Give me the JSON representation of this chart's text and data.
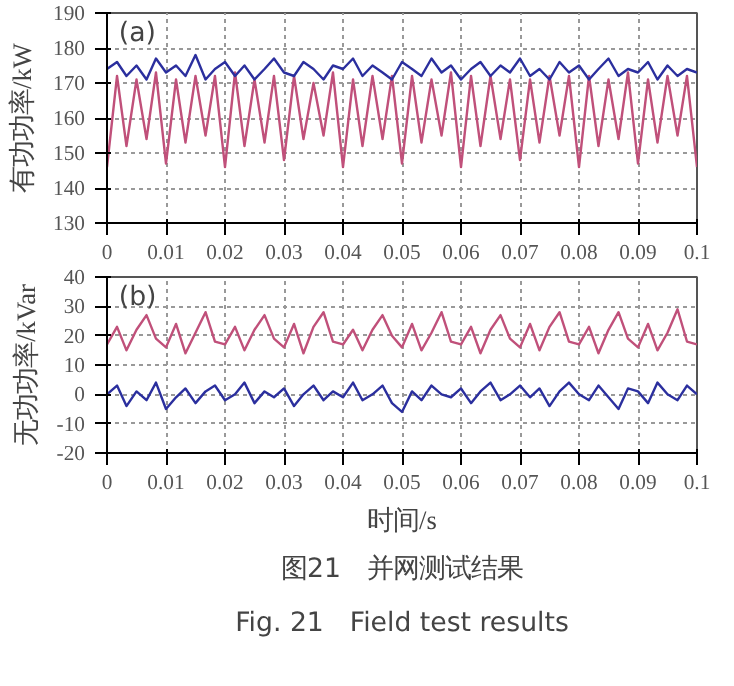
{
  "chart_data": [
    {
      "type": "line",
      "ylabel": "有功功率/kW",
      "annotations": [
        "(a)"
      ],
      "xlim": [
        0,
        0.1
      ],
      "ylim": [
        130,
        190
      ],
      "xticks": [
        0,
        0.01,
        0.02,
        0.03,
        0.04,
        0.05,
        0.06,
        0.07,
        0.08,
        0.09,
        0.1
      ],
      "yticks": [
        130,
        140,
        150,
        160,
        170,
        180,
        190
      ],
      "grid": true,
      "x": [
        0,
        0.0017,
        0.0033,
        0.005,
        0.0067,
        0.0083,
        0.01,
        0.0117,
        0.0133,
        0.015,
        0.0167,
        0.0183,
        0.02,
        0.0217,
        0.0233,
        0.025,
        0.0267,
        0.0283,
        0.03,
        0.0317,
        0.0333,
        0.035,
        0.0367,
        0.0383,
        0.04,
        0.0417,
        0.0433,
        0.045,
        0.0467,
        0.0483,
        0.05,
        0.0517,
        0.0533,
        0.055,
        0.0567,
        0.0583,
        0.06,
        0.0617,
        0.0633,
        0.065,
        0.0667,
        0.0683,
        0.07,
        0.0717,
        0.0733,
        0.075,
        0.0767,
        0.0783,
        0.08,
        0.0817,
        0.0833,
        0.085,
        0.0867,
        0.0883,
        0.09,
        0.0917,
        0.0933,
        0.095,
        0.0967,
        0.0983,
        0.1
      ],
      "series": [
        {
          "color": "#c0507a",
          "values": [
            146,
            172,
            152,
            171,
            154,
            173,
            147,
            171,
            153,
            172,
            155,
            172,
            146,
            173,
            152,
            171,
            153,
            172,
            148,
            172,
            154,
            170,
            155,
            173,
            146,
            171,
            152,
            172,
            154,
            172,
            147,
            172,
            153,
            171,
            155,
            173,
            146,
            172,
            152,
            172,
            154,
            171,
            148,
            171,
            153,
            172,
            155,
            172,
            146,
            172,
            152,
            171,
            154,
            173,
            147,
            171,
            153,
            172,
            155,
            172,
            146
          ]
        },
        {
          "color": "#2b2f9e",
          "values": [
            174,
            176,
            172,
            175,
            171,
            177,
            173,
            175,
            172,
            178,
            171,
            174,
            176,
            172,
            175,
            171,
            174,
            177,
            173,
            172,
            176,
            174,
            171,
            175,
            174,
            177,
            172,
            175,
            173,
            171,
            176,
            174,
            172,
            177,
            173,
            175,
            171,
            174,
            176,
            172,
            175,
            173,
            177,
            172,
            174,
            171,
            176,
            173,
            175,
            171,
            174,
            177,
            172,
            174,
            173,
            176,
            171,
            175,
            172,
            174,
            173
          ]
        }
      ]
    },
    {
      "type": "line",
      "xlabel": "时间/s",
      "ylabel": "无功功率/kVar",
      "annotations": [
        "(b)",
        "图21　并网测试结果",
        "Fig. 21　Field test results"
      ],
      "xlim": [
        0,
        0.1
      ],
      "ylim": [
        -20,
        40
      ],
      "xticks": [
        0,
        0.01,
        0.02,
        0.03,
        0.04,
        0.05,
        0.06,
        0.07,
        0.08,
        0.09,
        0.1
      ],
      "yticks": [
        -20,
        -10,
        0,
        10,
        20,
        30,
        40
      ],
      "grid": true,
      "x": [
        0,
        0.0017,
        0.0033,
        0.005,
        0.0067,
        0.0083,
        0.01,
        0.0117,
        0.0133,
        0.015,
        0.0167,
        0.0183,
        0.02,
        0.0217,
        0.0233,
        0.025,
        0.0267,
        0.0283,
        0.03,
        0.0317,
        0.0333,
        0.035,
        0.0367,
        0.0383,
        0.04,
        0.0417,
        0.0433,
        0.045,
        0.0467,
        0.0483,
        0.05,
        0.0517,
        0.0533,
        0.055,
        0.0567,
        0.0583,
        0.06,
        0.0617,
        0.0633,
        0.065,
        0.0667,
        0.0683,
        0.07,
        0.0717,
        0.0733,
        0.075,
        0.0767,
        0.0783,
        0.08,
        0.0817,
        0.0833,
        0.085,
        0.0867,
        0.0883,
        0.09,
        0.0917,
        0.0933,
        0.095,
        0.0967,
        0.0983,
        0.1
      ],
      "series": [
        {
          "color": "#c0507a",
          "values": [
            17,
            23,
            15,
            22,
            27,
            19,
            16,
            24,
            14,
            21,
            28,
            18,
            17,
            23,
            15,
            22,
            27,
            19,
            16,
            24,
            14,
            23,
            28,
            18,
            17,
            22,
            15,
            22,
            27,
            20,
            16,
            24,
            15,
            21,
            28,
            18,
            17,
            23,
            14,
            22,
            27,
            19,
            16,
            24,
            15,
            23,
            28,
            18,
            17,
            23,
            14,
            22,
            28,
            19,
            16,
            24,
            15,
            21,
            29,
            18,
            17
          ]
        },
        {
          "color": "#2b2f9e",
          "values": [
            0,
            3,
            -4,
            1,
            -2,
            4,
            -5,
            -1,
            2,
            -3,
            1,
            3,
            -2,
            0,
            4,
            -3,
            1,
            -1,
            2,
            -4,
            0,
            3,
            -2,
            1,
            -1,
            4,
            -2,
            0,
            3,
            -3,
            -6,
            1,
            -2,
            3,
            0,
            -1,
            2,
            -3,
            1,
            4,
            -2,
            0,
            3,
            -1,
            2,
            -4,
            1,
            4,
            0,
            -2,
            3,
            -1,
            -5,
            2,
            1,
            -3,
            4,
            0,
            -2,
            3,
            0
          ]
        }
      ]
    }
  ]
}
